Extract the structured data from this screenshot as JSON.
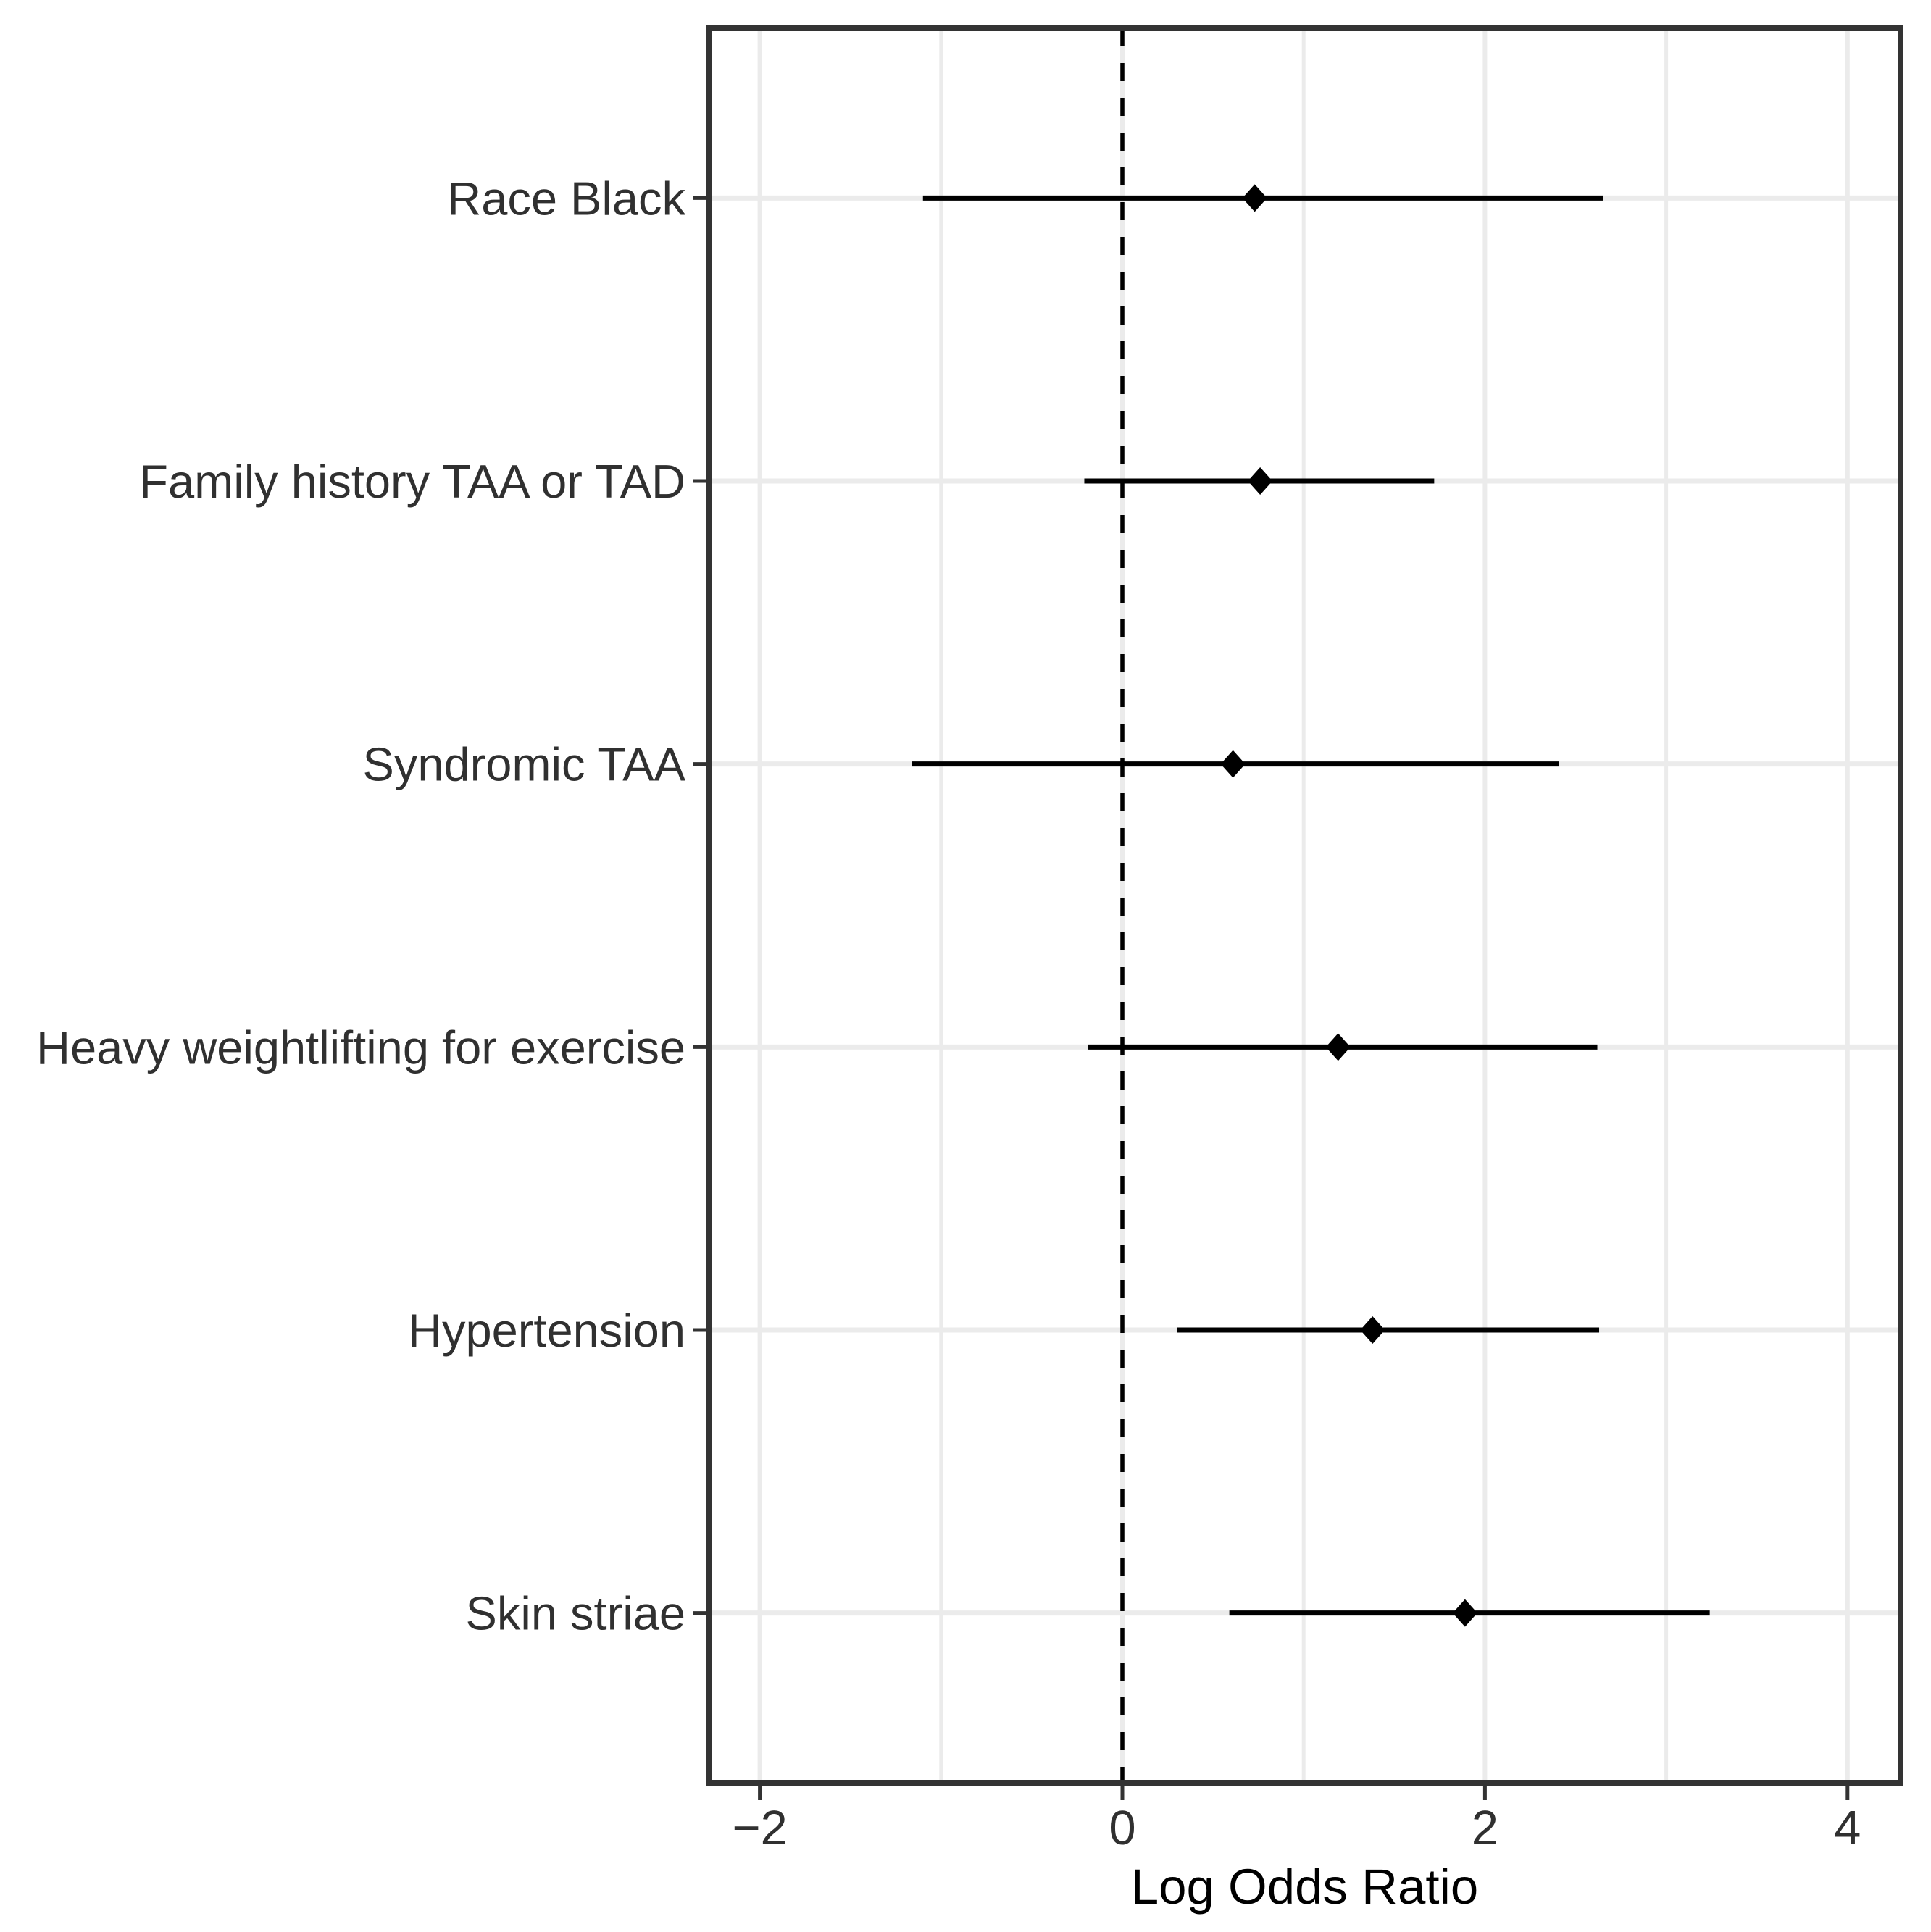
{
  "figure": {
    "background_color": "#ffffff"
  },
  "chart_data": {
    "type": "scatter",
    "variant": "forest-plot",
    "title": "",
    "xlabel": "Log Odds Ratio",
    "ylabel": "",
    "xlim": [
      -2.28,
      4.3
    ],
    "x_major_ticks": [
      -2,
      0,
      2,
      4
    ],
    "x_gridline_values": [
      -2,
      -1,
      0,
      1,
      2,
      3,
      4
    ],
    "reference_line_x": 0,
    "reference_line_style": "dashed",
    "grid": "on",
    "legend_position": "none",
    "categories": [
      "Race Black",
      "Family history TAA or TAD",
      "Syndromic TAA",
      "Heavy weightlifting for exercise",
      "Hypertension",
      "Skin striae"
    ],
    "series": [
      {
        "name": "Log Odds Ratio",
        "marker": "diamond",
        "values": [
          0.73,
          0.76,
          0.61,
          1.19,
          1.38,
          1.89
        ],
        "ci_lower": [
          -1.1,
          -0.21,
          -1.16,
          -0.19,
          0.3,
          0.59
        ],
        "ci_upper": [
          2.65,
          1.72,
          2.41,
          2.62,
          2.63,
          3.24
        ]
      }
    ],
    "colors": {
      "marker": "#000000",
      "ci_line": "#000000",
      "reference_line": "#000000",
      "grid_line": "#ebebeb",
      "panel_border": "#333333",
      "tick_mark": "#333333",
      "axis_text": "#303030",
      "axis_title": "#000000",
      "panel_background": "#ffffff"
    }
  }
}
